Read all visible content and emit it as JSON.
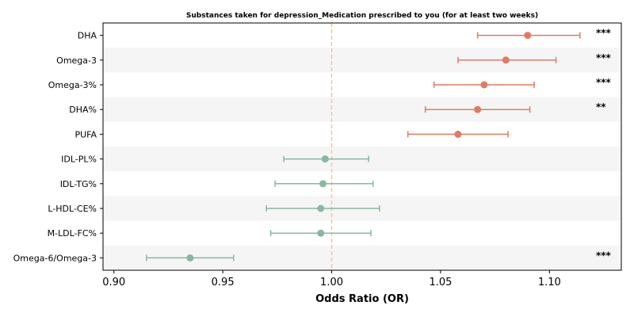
{
  "chart_data": {
    "type": "scatter",
    "subtype": "forest-plot",
    "title": "Substances taken for depression_Medication prescribed to you (for at least two weeks)",
    "xlabel": "Odds Ratio (OR)",
    "ylabel": "",
    "xlim": [
      0.895,
      1.133
    ],
    "xticks": [
      0.9,
      0.95,
      1.0,
      1.05,
      1.1
    ],
    "xtick_labels": [
      "0.90",
      "0.95",
      "1.00",
      "1.05",
      "1.10"
    ],
    "reference_line": 1.0,
    "grid": false,
    "row_banding": true,
    "colors": {
      "positive": "#e07b62",
      "negative": "#88b9a0",
      "reference": "#f3c98b",
      "band": "#f5f5f5"
    },
    "rows": [
      {
        "label": "DHA",
        "or": 1.09,
        "ci_low": 1.067,
        "ci_high": 1.114,
        "sig": "***"
      },
      {
        "label": "Omega-3",
        "or": 1.08,
        "ci_low": 1.058,
        "ci_high": 1.103,
        "sig": "***"
      },
      {
        "label": "Omega-3%",
        "or": 1.07,
        "ci_low": 1.047,
        "ci_high": 1.093,
        "sig": "***"
      },
      {
        "label": "DHA%",
        "or": 1.067,
        "ci_low": 1.043,
        "ci_high": 1.091,
        "sig": "**"
      },
      {
        "label": "PUFA",
        "or": 1.058,
        "ci_low": 1.035,
        "ci_high": 1.081,
        "sig": ""
      },
      {
        "label": "IDL-PL%",
        "or": 0.997,
        "ci_low": 0.978,
        "ci_high": 1.017,
        "sig": ""
      },
      {
        "label": "IDL-TG%",
        "or": 0.996,
        "ci_low": 0.974,
        "ci_high": 1.019,
        "sig": ""
      },
      {
        "label": "L-HDL-CE%",
        "or": 0.995,
        "ci_low": 0.97,
        "ci_high": 1.022,
        "sig": ""
      },
      {
        "label": "M-LDL-FC%",
        "or": 0.995,
        "ci_low": 0.972,
        "ci_high": 1.018,
        "sig": ""
      },
      {
        "label": "Omega-6/Omega-3",
        "or": 0.935,
        "ci_low": 0.915,
        "ci_high": 0.955,
        "sig": "***"
      }
    ]
  }
}
